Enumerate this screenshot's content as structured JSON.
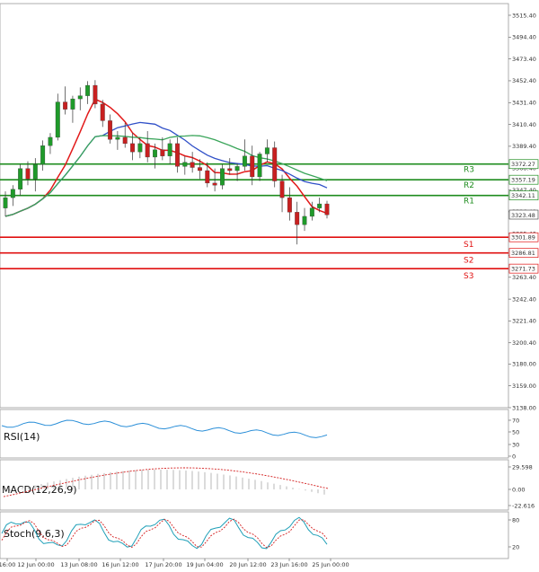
{
  "chart_data": {
    "type": "candlestick",
    "price_axis": {
      "ticks": [
        "3515.40",
        "3494.40",
        "3473.40",
        "3452.40",
        "3431.40",
        "3410.40",
        "3389.40",
        "3368.40",
        "3347.40",
        "3326.40",
        "3305.40",
        "3284.40",
        "3263.40",
        "3242.40",
        "3221.40",
        "3200.40",
        "3180.00",
        "3159.00",
        "3138.00"
      ],
      "ylim": [
        3138.0,
        3520.0
      ]
    },
    "time_axis": {
      "labels": [
        "16:00",
        "12 Jun 00:00",
        "13 Jun 08:00",
        "16 Jun 12:00",
        "17 Jun 20:00",
        "19 Jun 04:00",
        "20 Jun 12:00",
        "23 Jun 16:00",
        "25 Jun 00:00"
      ]
    },
    "current_price": "3323.48",
    "levels": [
      {
        "name": "R3",
        "value": 3372.27,
        "label": "3372.27",
        "color": "#1e8c1e"
      },
      {
        "name": "R2",
        "value": 3357.19,
        "label": "3357.19",
        "color": "#1e8c1e"
      },
      {
        "name": "R1",
        "value": 3342.11,
        "label": "3342.11",
        "color": "#1e8c1e"
      },
      {
        "name": "S1",
        "value": 3301.89,
        "label": "3301.89",
        "color": "#e01010"
      },
      {
        "name": "S2",
        "value": 3286.81,
        "label": "3286.81",
        "color": "#e01010"
      },
      {
        "name": "S3",
        "value": 3271.73,
        "label": "3271.73",
        "color": "#e01010"
      }
    ],
    "candles": [
      [
        3330,
        3346,
        3322,
        3340
      ],
      [
        3340,
        3352,
        3332,
        3348
      ],
      [
        3348,
        3372,
        3342,
        3368
      ],
      [
        3368,
        3375,
        3352,
        3358
      ],
      [
        3358,
        3378,
        3346,
        3372
      ],
      [
        3372,
        3395,
        3366,
        3390
      ],
      [
        3390,
        3402,
        3382,
        3398
      ],
      [
        3398,
        3440,
        3395,
        3432
      ],
      [
        3432,
        3447,
        3420,
        3425
      ],
      [
        3425,
        3438,
        3412,
        3435
      ],
      [
        3435,
        3446,
        3424,
        3438
      ],
      [
        3438,
        3452,
        3430,
        3448
      ],
      [
        3448,
        3453,
        3426,
        3430
      ],
      [
        3430,
        3434,
        3408,
        3414
      ],
      [
        3414,
        3420,
        3392,
        3396
      ],
      [
        3396,
        3404,
        3386,
        3398
      ],
      [
        3398,
        3412,
        3388,
        3392
      ],
      [
        3392,
        3402,
        3376,
        3384
      ],
      [
        3384,
        3398,
        3378,
        3392
      ],
      [
        3392,
        3404,
        3374,
        3379
      ],
      [
        3379,
        3392,
        3368,
        3386
      ],
      [
        3386,
        3398,
        3376,
        3380
      ],
      [
        3380,
        3396,
        3372,
        3392
      ],
      [
        3392,
        3398,
        3364,
        3370
      ],
      [
        3370,
        3380,
        3362,
        3374
      ],
      [
        3374,
        3384,
        3364,
        3369
      ],
      [
        3369,
        3377,
        3358,
        3366
      ],
      [
        3366,
        3374,
        3350,
        3354
      ],
      [
        3354,
        3368,
        3346,
        3352
      ],
      [
        3352,
        3372,
        3348,
        3368
      ],
      [
        3368,
        3378,
        3362,
        3366
      ],
      [
        3366,
        3373,
        3356,
        3370
      ],
      [
        3370,
        3396,
        3366,
        3380
      ],
      [
        3380,
        3390,
        3352,
        3360
      ],
      [
        3360,
        3384,
        3356,
        3382
      ],
      [
        3382,
        3396,
        3374,
        3388
      ],
      [
        3388,
        3394,
        3350,
        3356
      ],
      [
        3356,
        3362,
        3326,
        3340
      ],
      [
        3340,
        3350,
        3318,
        3326
      ],
      [
        3326,
        3336,
        3295,
        3314
      ],
      [
        3314,
        3330,
        3308,
        3322
      ],
      [
        3322,
        3336,
        3318,
        3330
      ],
      [
        3330,
        3340,
        3326,
        3334
      ],
      [
        3334,
        3337,
        3320,
        3323.48
      ]
    ],
    "series": [
      {
        "name": "",
        "type": "ma",
        "color": "#e21a1a"
      },
      {
        "name": "",
        "type": "ma",
        "color": "#3050c8"
      },
      {
        "name": "",
        "type": "ma",
        "color": "#3aa55a"
      }
    ],
    "indicators": [
      {
        "name": "RSI(14)",
        "ticks": [
          "70",
          "50",
          "30",
          "0"
        ],
        "color": "#2b8fd8"
      },
      {
        "name": "MACD(12,26,9)",
        "ticks": [
          "29.598",
          "0.00",
          "-22.616"
        ],
        "signal_color": "#d42020"
      },
      {
        "name": "Stoch(9,6,3)",
        "ticks": [
          "80",
          "20"
        ],
        "k_color": "#20a0b8",
        "d_color": "#d42020"
      }
    ]
  }
}
